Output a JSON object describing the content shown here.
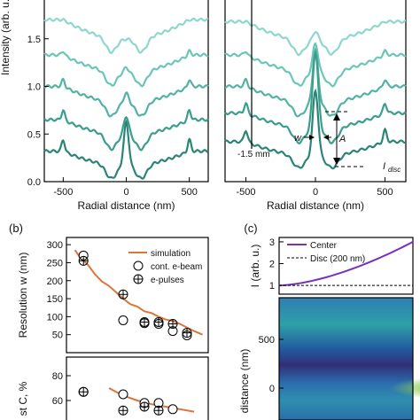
{
  "chart_data": [
    {
      "id": "a_left",
      "type": "line",
      "ylabel": "Intensity (arb. u.)",
      "xlabel": "Radial distance (nm)",
      "xlim": [
        -650,
        650
      ],
      "ylim": [
        0.0,
        2.0
      ],
      "xticks": [
        -500,
        0,
        500
      ],
      "yticks": [
        0.0,
        0.5,
        1.0,
        1.5
      ],
      "series_colors": [
        "#8ed7cc",
        "#6cc6b8",
        "#52b3a3",
        "#3b9e8d",
        "#2b8576"
      ],
      "series": [
        {
          "baseline": 1.7,
          "wing": 0.2,
          "core": 0.25,
          "peak": 0.0,
          "edge": 0.0
        },
        {
          "baseline": 1.33,
          "wing": 0.18,
          "core": 0.25,
          "peak": 0.05,
          "edge": 0.04
        },
        {
          "baseline": 1.0,
          "wing": 0.17,
          "core": 0.25,
          "peak": 0.1,
          "edge": 0.07
        },
        {
          "baseline": 0.65,
          "wing": 0.16,
          "core": 0.26,
          "peak": 0.2,
          "edge": 0.1
        },
        {
          "baseline": 0.32,
          "wing": 0.15,
          "core": 0.24,
          "peak": 0.45,
          "edge": 0.12
        }
      ]
    },
    {
      "id": "a_right",
      "type": "line",
      "xlabel": "Radial distance (nm)",
      "xlim": [
        -650,
        650
      ],
      "ylim": [
        0.0,
        2.0
      ],
      "xticks": [
        -500,
        0,
        500
      ],
      "annotations": {
        "distance": "-1.5 mm",
        "width": "w",
        "amplitude": "A",
        "disc": "I",
        "disc_sub": "disc"
      },
      "series_colors": [
        "#8ed7cc",
        "#6cc6b8",
        "#52b3a3",
        "#3b9e8d",
        "#2b8576"
      ],
      "series": [
        {
          "baseline": 1.68,
          "wing": 0.2,
          "core": 0.25,
          "peak": 0.1,
          "edge": 0.0
        },
        {
          "baseline": 1.33,
          "wing": 0.18,
          "core": 0.25,
          "peak": 0.3,
          "edge": 0.04
        },
        {
          "baseline": 1.0,
          "wing": 0.17,
          "core": 0.25,
          "peak": 0.55,
          "edge": 0.07
        },
        {
          "baseline": 0.72,
          "wing": 0.16,
          "core": 0.26,
          "peak": 0.8,
          "edge": 0.1
        },
        {
          "baseline": 0.42,
          "wing": 0.15,
          "core": 0.22,
          "peak": 0.68,
          "edge": 0.12
        }
      ]
    },
    {
      "id": "b_top",
      "type": "scatter",
      "panel_label": "(b)",
      "ylabel": "Resolution w (nm)",
      "xlim": [
        0,
        10
      ],
      "ylim": [
        0,
        320
      ],
      "yticks": [
        50,
        100,
        150,
        200,
        250,
        300
      ],
      "legend": [
        "simulation",
        "cont. e-beam",
        "e-pulses"
      ],
      "legend_position": "top-right",
      "simulation": {
        "color": "#d9773a",
        "x": [
          0.6,
          1.0,
          1.5,
          2.0,
          2.5,
          3.0,
          3.5,
          4.0,
          4.5,
          5.0,
          5.5,
          6.0,
          6.5,
          7.0,
          7.5,
          8.0,
          8.5,
          9.0,
          9.6
        ],
        "y": [
          285,
          262,
          245,
          218,
          198,
          185,
          168,
          150,
          135,
          128,
          115,
          110,
          100,
          92,
          88,
          80,
          70,
          60,
          50
        ]
      },
      "cont_ebeam": {
        "x": [
          1.2,
          4.0,
          5.5,
          6.5,
          7.5,
          8.5
        ],
        "y": [
          270,
          90,
          82,
          80,
          60,
          48
        ]
      },
      "e_pulses": {
        "x": [
          1.2,
          4.0,
          5.5,
          6.5,
          7.5,
          8.5
        ],
        "y": [
          255,
          162,
          85,
          85,
          80,
          55
        ]
      }
    },
    {
      "id": "b_bottom",
      "type": "scatter",
      "ylabel": "st C, %",
      "xlim": [
        0,
        10
      ],
      "ylim": [
        40,
        95
      ],
      "yticks": [
        40,
        60,
        80
      ],
      "simulation": {
        "x": [
          3.0,
          4.0,
          5.0,
          6.0,
          7.0,
          8.0,
          9.0
        ],
        "y": [
          70,
          64,
          60,
          57,
          55,
          53,
          51
        ]
      },
      "cont_ebeam": {
        "x": [
          1.2,
          4.0,
          5.5,
          6.5,
          7.5
        ],
        "y": [
          67,
          65,
          58,
          58,
          53
        ]
      },
      "e_pulses": {
        "x": [
          1.2,
          4.0,
          5.5,
          6.5
        ],
        "y": [
          67,
          52,
          55,
          52
        ]
      }
    },
    {
      "id": "c_top",
      "type": "line",
      "panel_label": "(c)",
      "ylabel": "I (arb. u.)",
      "ylim": [
        0.6,
        3.2
      ],
      "yticks": [
        1,
        2,
        3
      ],
      "legend": [
        "Center",
        "Disc (200 nm)"
      ],
      "center": {
        "color": "#7b2fbe",
        "x": [
          0,
          0.2,
          0.4,
          0.6,
          0.8,
          1.0
        ],
        "y": [
          1.0,
          1.25,
          1.55,
          1.9,
          2.35,
          3.0
        ]
      },
      "disc": {
        "x": [
          0,
          1.0
        ],
        "y": [
          1.0,
          1.0
        ]
      }
    },
    {
      "id": "c_bottom",
      "type": "heatmap",
      "ylabel": "distance (nm)",
      "yticks": [
        0,
        500
      ]
    }
  ]
}
